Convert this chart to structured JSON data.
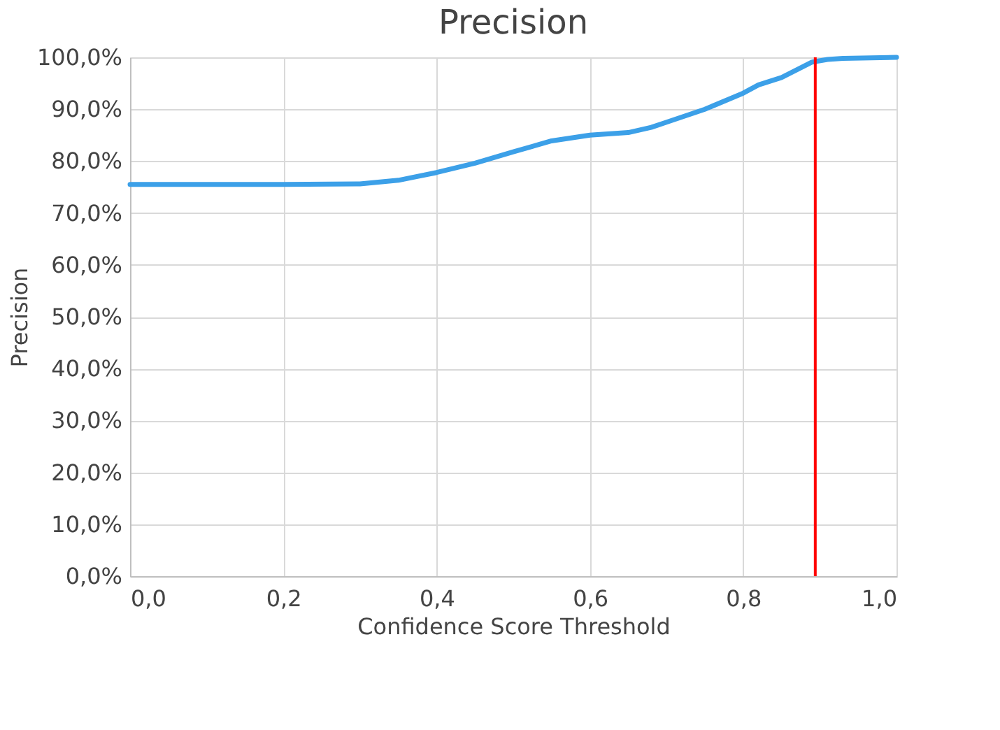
{
  "chart_data": {
    "type": "line",
    "title": "Precision",
    "xlabel": "Confidence Score Threshold",
    "ylabel": "Precision",
    "x": [
      0,
      0.1,
      0.2,
      0.3,
      0.35,
      0.4,
      0.45,
      0.5,
      0.55,
      0.6,
      0.65,
      0.68,
      0.7,
      0.75,
      0.8,
      0.82,
      0.85,
      0.89,
      0.91,
      0.93,
      1.0
    ],
    "series": [
      {
        "color": "#3ca0e8",
        "values": [
          75.5,
          75.5,
          75.5,
          75.6,
          76.3,
          77.8,
          79.6,
          81.8,
          83.9,
          85.0,
          85.5,
          86.5,
          87.5,
          90.0,
          93.1,
          94.7,
          96.1,
          99.1,
          99.6,
          99.8,
          100.0
        ]
      }
    ],
    "xlim": [
      0,
      1
    ],
    "ylim": [
      0,
      100
    ],
    "xticks": [
      {
        "value": 0,
        "label": "0,0"
      },
      {
        "value": 0.2,
        "label": "0,2"
      },
      {
        "value": 0.4,
        "label": "0,4"
      },
      {
        "value": 0.6,
        "label": "0,6"
      },
      {
        "value": 0.8,
        "label": "0,8"
      },
      {
        "value": 1,
        "label": "1,0"
      }
    ],
    "yticks": [
      {
        "value": 0,
        "label": "0,0%"
      },
      {
        "value": 10,
        "label": "10,0%"
      },
      {
        "value": 20,
        "label": "20,0%"
      },
      {
        "value": 30,
        "label": "30,0%"
      },
      {
        "value": 40,
        "label": "40,0%"
      },
      {
        "value": 50,
        "label": "50,0%"
      },
      {
        "value": 60,
        "label": "60,0%"
      },
      {
        "value": 70,
        "label": "70,0%"
      },
      {
        "value": 80,
        "label": "80,0%"
      },
      {
        "value": 90,
        "label": "90,0%"
      },
      {
        "value": 100,
        "label": "100,0%"
      }
    ],
    "ref_lines": [
      {
        "axis": "x",
        "value": 0.894,
        "color": "#ff0000"
      }
    ],
    "grid": true,
    "marker": "none",
    "line_style": "solid"
  }
}
